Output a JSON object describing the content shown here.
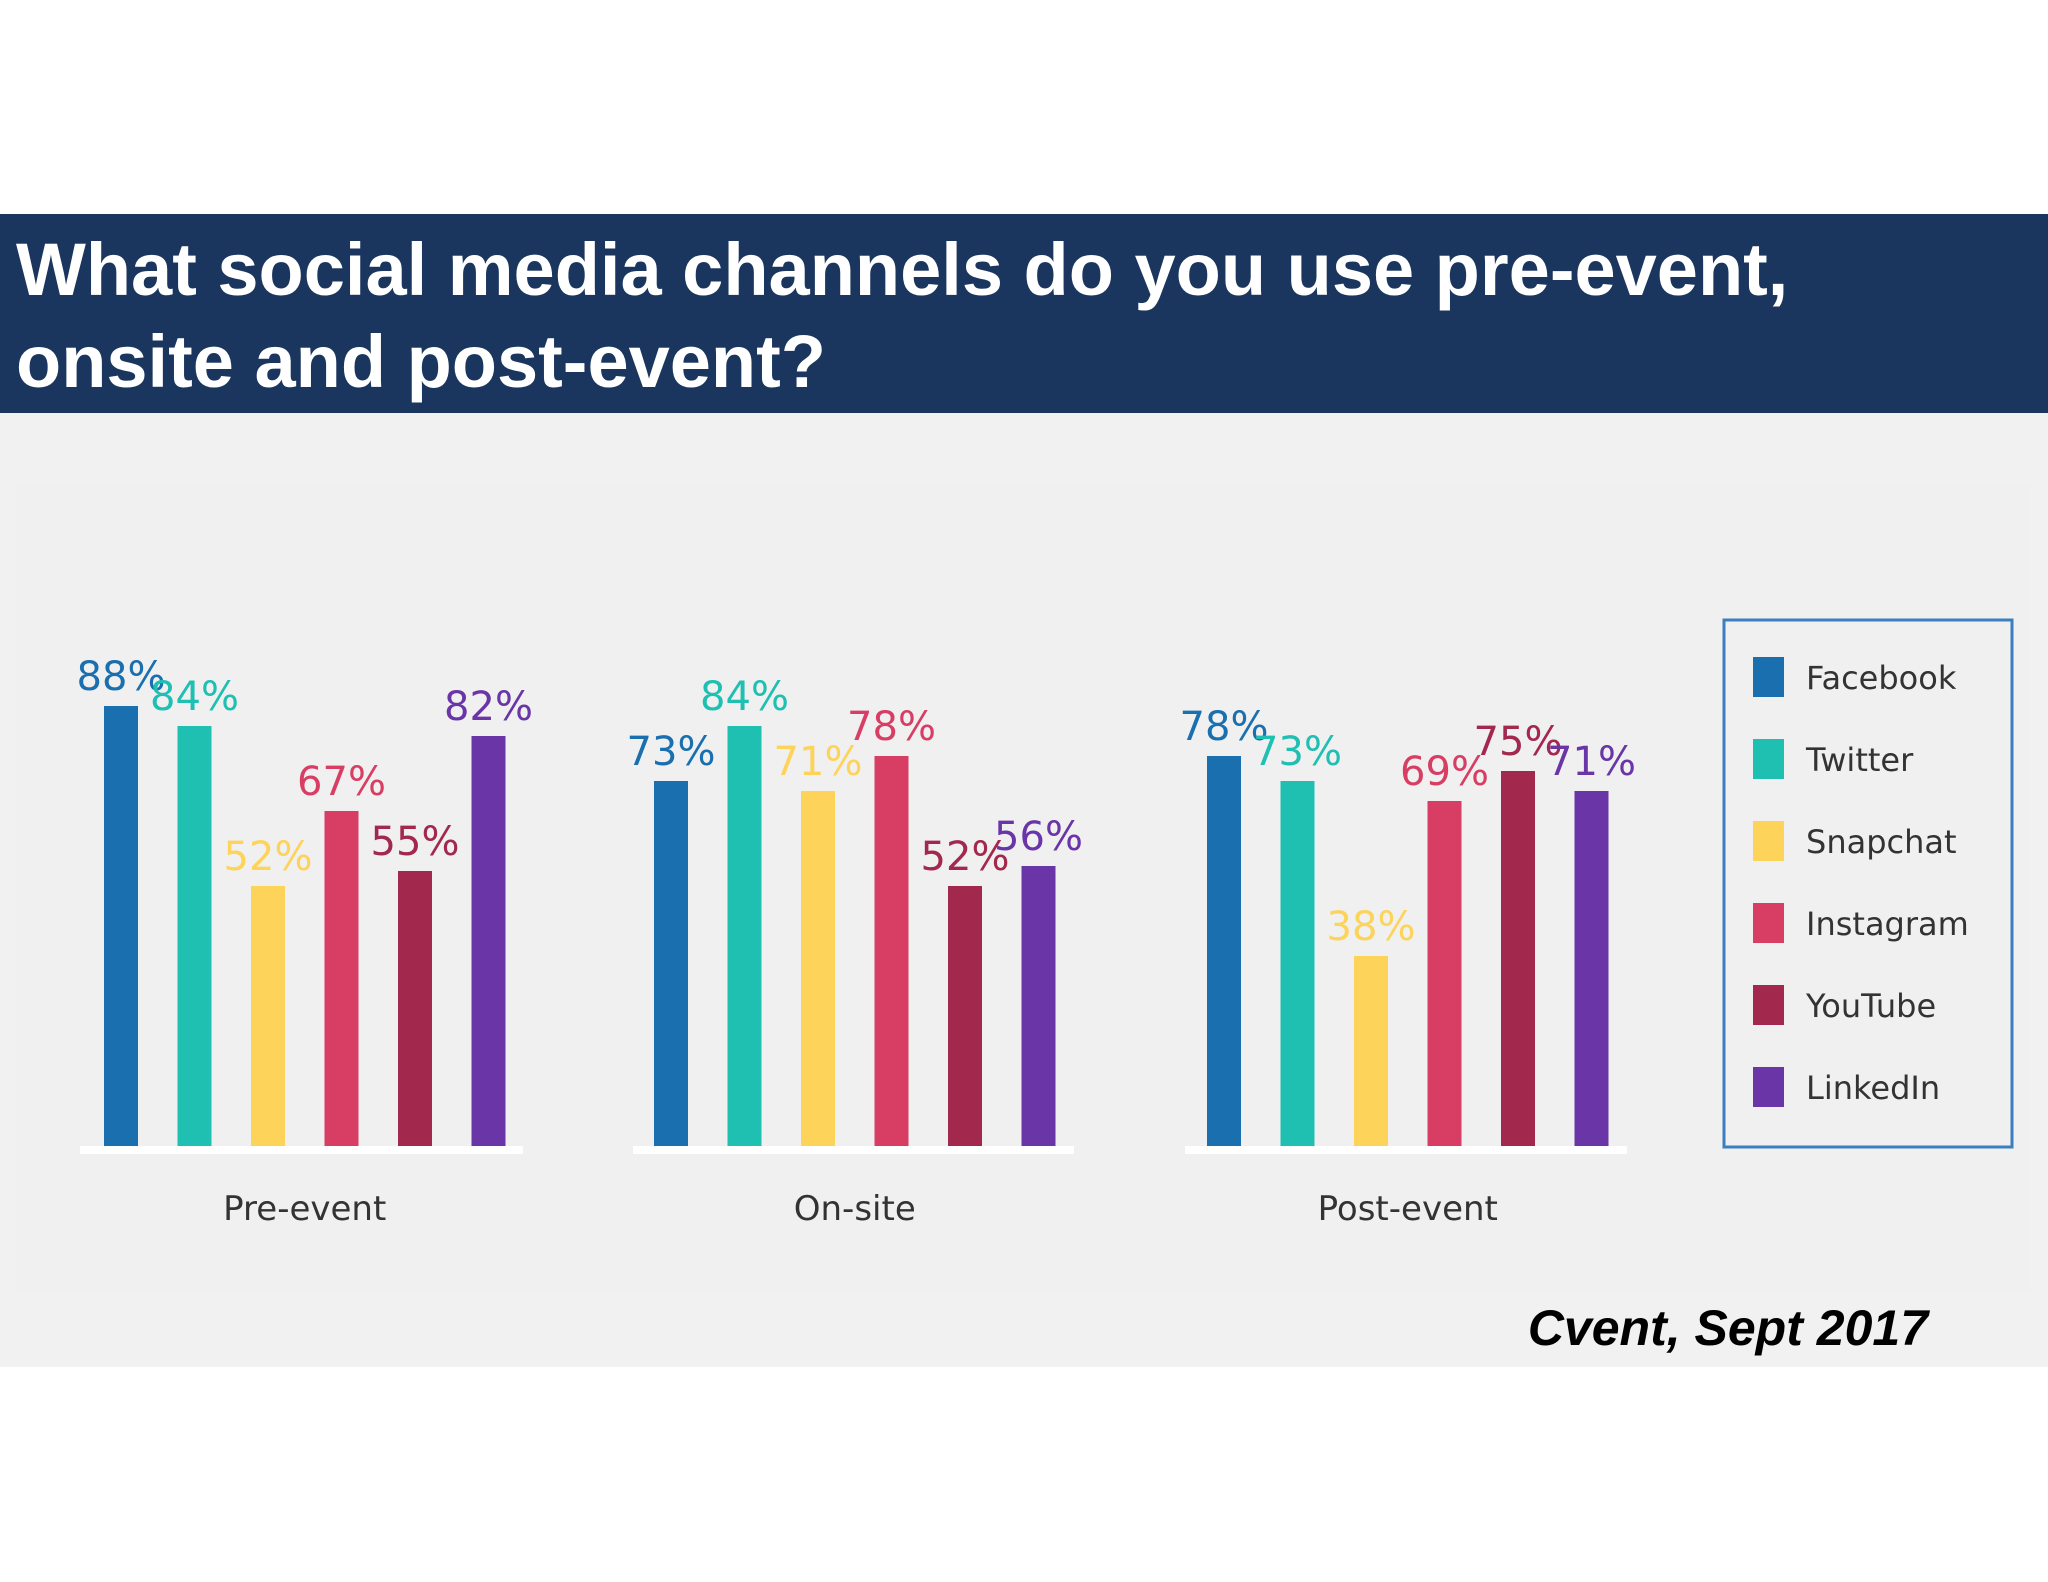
{
  "title": "What social media channels do you use pre-event, onsite and post-event?",
  "source": "Cvent, Sept 2017",
  "chart_data": {
    "type": "bar",
    "title": "",
    "xlabel": "",
    "ylabel": "",
    "categories": [
      "Pre-event",
      "On-site",
      "Post-event"
    ],
    "ylim": [
      0,
      100
    ],
    "grid": false,
    "legend_position": "right",
    "unit": "%",
    "series": [
      {
        "name": "Facebook",
        "color": "#1a6faf",
        "values": [
          88,
          73,
          78
        ]
      },
      {
        "name": "Twitter",
        "color": "#1fbfb2",
        "values": [
          84,
          84,
          73
        ]
      },
      {
        "name": "Snapchat",
        "color": "#fdd35a",
        "values": [
          52,
          71,
          38
        ]
      },
      {
        "name": "Instagram",
        "color": "#d83e63",
        "values": [
          67,
          78,
          69
        ]
      },
      {
        "name": "YouTube",
        "color": "#a3284d",
        "values": [
          55,
          52,
          75
        ]
      },
      {
        "name": "LinkedIn",
        "color": "#6a35a7",
        "values": [
          82,
          56,
          71
        ]
      }
    ]
  }
}
